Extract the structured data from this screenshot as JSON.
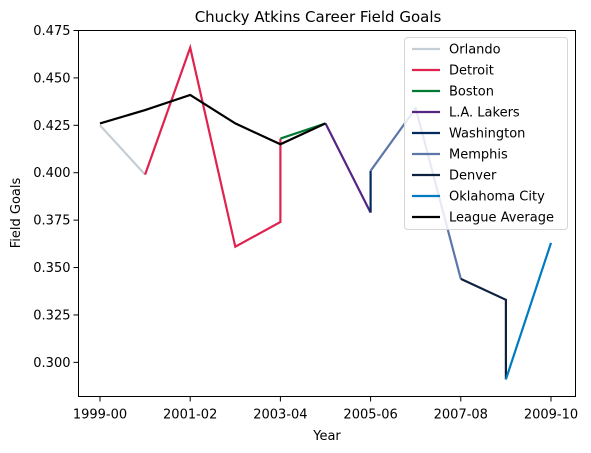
{
  "chart_data": {
    "type": "line",
    "title": "Chucky Atkins Career Field Goals",
    "xlabel": "Year",
    "ylabel": "Field Goals",
    "x_categories": [
      "1999-00",
      "2000-01",
      "2001-02",
      "2002-03",
      "2003-04",
      "2004-05",
      "2005-06",
      "2006-07",
      "2007-08",
      "2008-09",
      "2009-10"
    ],
    "x_tick_labels": [
      "1999-00",
      "2001-02",
      "2003-04",
      "2005-06",
      "2007-08",
      "2009-10"
    ],
    "y_ticks": [
      "0.300",
      "0.325",
      "0.350",
      "0.375",
      "0.400",
      "0.425",
      "0.450",
      "0.475"
    ],
    "ylim": [
      0.282,
      0.475
    ],
    "grid": false,
    "legend_position": "top-right",
    "series": [
      {
        "name": "Orlando",
        "color": "#c4ced4",
        "points": [
          [
            "1999-00",
            0.425
          ],
          [
            "2000-01",
            0.399
          ]
        ]
      },
      {
        "name": "Detroit",
        "color": "#e0234e",
        "points": [
          [
            "2000-01",
            0.399
          ],
          [
            "2001-02",
            0.466
          ],
          [
            "2002-03",
            0.361
          ],
          [
            "2003-04",
            0.374
          ],
          [
            "2003-04",
            0.418
          ]
        ]
      },
      {
        "name": "Boston",
        "color": "#007a33",
        "points": [
          [
            "2003-04",
            0.418
          ],
          [
            "2004-05",
            0.426
          ]
        ]
      },
      {
        "name": "L.A. Lakers",
        "color": "#552583",
        "points": [
          [
            "2004-05",
            0.426
          ],
          [
            "2005-06",
            0.379
          ]
        ]
      },
      {
        "name": "Washington",
        "color": "#002b5c",
        "points": [
          [
            "2005-06",
            0.379
          ],
          [
            "2005-06",
            0.401
          ]
        ]
      },
      {
        "name": "Memphis",
        "color": "#5d76a9",
        "points": [
          [
            "2005-06",
            0.401
          ],
          [
            "2006-07",
            0.434
          ],
          [
            "2007-08",
            0.344
          ]
        ]
      },
      {
        "name": "Denver",
        "color": "#0e2240",
        "points": [
          [
            "2007-08",
            0.344
          ],
          [
            "2008-09",
            0.333
          ],
          [
            "2008-09",
            0.291
          ]
        ]
      },
      {
        "name": "Oklahoma City",
        "color": "#007ac1",
        "points": [
          [
            "2008-09",
            0.291
          ],
          [
            "2009-10",
            0.363
          ]
        ]
      },
      {
        "name": "League Average",
        "color": "#000000",
        "points": [
          [
            "1999-00",
            0.426
          ],
          [
            "2000-01",
            0.433
          ],
          [
            "2001-02",
            0.441
          ],
          [
            "2002-03",
            0.426
          ],
          [
            "2003-04",
            0.415
          ],
          [
            "2004-05",
            0.426
          ]
        ]
      }
    ]
  }
}
